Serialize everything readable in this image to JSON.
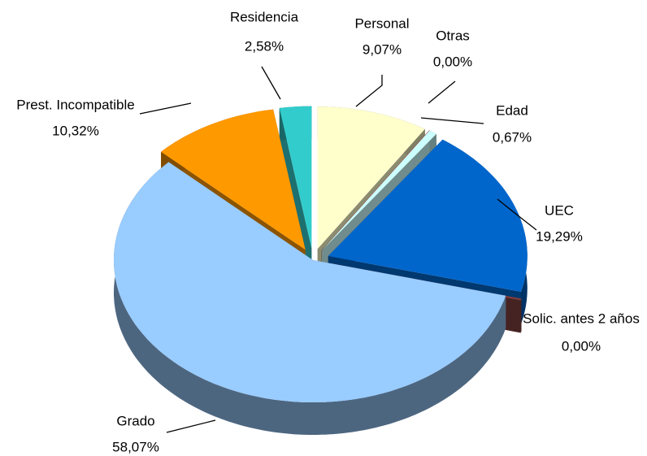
{
  "chart_data": {
    "type": "pie",
    "categories": [
      "Personal",
      "Otras",
      "Edad",
      "UEC",
      "Solic. antes 2 años",
      "Grado",
      "Prest. Incompatible",
      "Residencia"
    ],
    "values": [
      9.07,
      0,
      0.67,
      19.29,
      0,
      58.07,
      10.32,
      2.58
    ],
    "value_labels": [
      "9,07%",
      "0,00%",
      "0,67%",
      "19,29%",
      "0,00%",
      "58,07%",
      "10,32%",
      "2,58%"
    ],
    "colors": [
      "#ffffcc",
      "#993333",
      "#ccffff",
      "#0066cc",
      "#7f3f3f",
      "#99ccff",
      "#ff9900",
      "#33cccc"
    ]
  }
}
